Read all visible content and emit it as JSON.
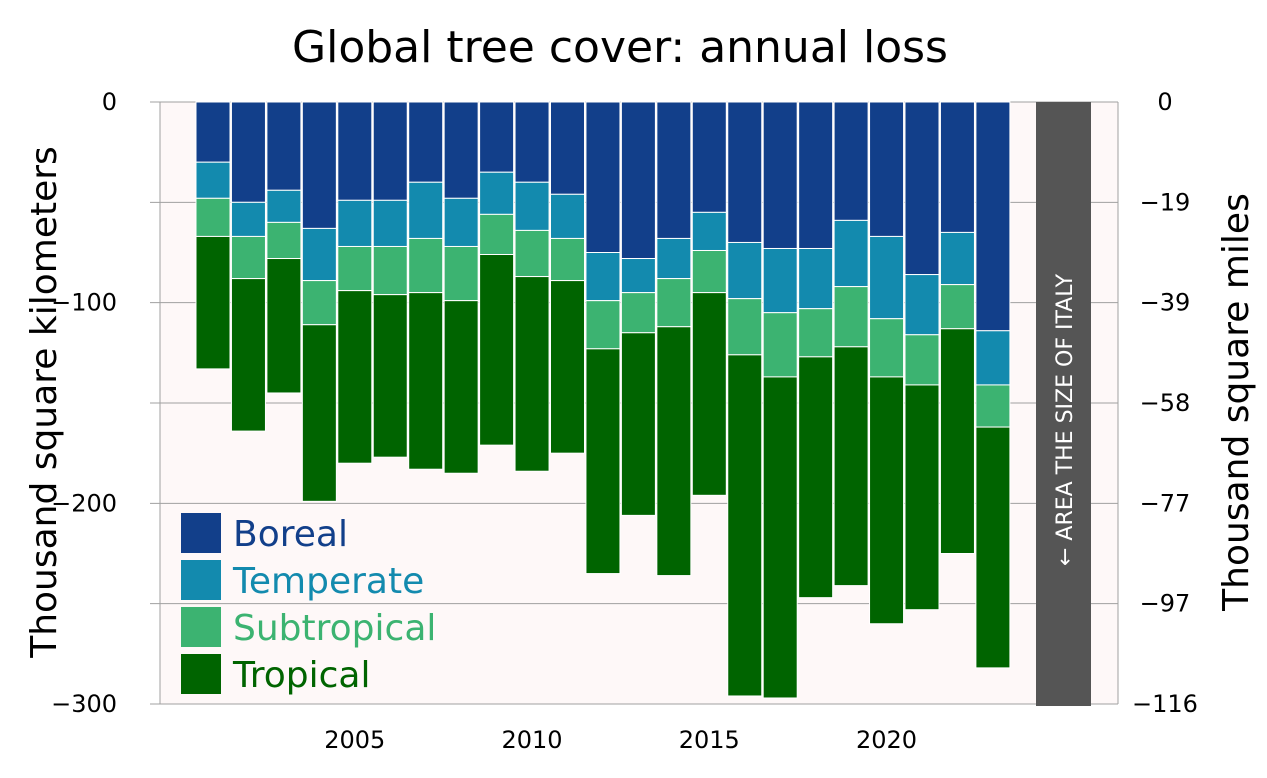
{
  "chart_data": {
    "type": "bar",
    "stacked": true,
    "title": "Global tree cover: annual loss",
    "ylabel": "Thousand square kilometers",
    "ylabel_right": "Thousand square miles",
    "ylim": [
      -300,
      0
    ],
    "yticks_left": [
      "0",
      "−100",
      "−200",
      "−300"
    ],
    "yticks_left_values": [
      0,
      -100,
      -200,
      -300
    ],
    "yticks_right": [
      "0",
      "−19",
      "−39",
      "−58",
      "−77",
      "−97",
      "−116"
    ],
    "yticks_right_values": [
      0,
      -50,
      -100,
      -150,
      -200,
      -250,
      -300
    ],
    "x": [
      2001,
      2002,
      2003,
      2004,
      2005,
      2006,
      2007,
      2008,
      2009,
      2010,
      2011,
      2012,
      2013,
      2014,
      2015,
      2016,
      2017,
      2018,
      2019,
      2020,
      2021,
      2022,
      2023
    ],
    "xticks": [
      "2005",
      "2010",
      "2015",
      "2020"
    ],
    "xticks_values": [
      2005,
      2010,
      2015,
      2020
    ],
    "series": [
      {
        "name": "Boreal",
        "color": "#123f8a",
        "values": [
          -30,
          -50,
          -44,
          -63,
          -49,
          -49,
          -40,
          -48,
          -35,
          -40,
          -46,
          -75,
          -78,
          -68,
          -55,
          -70,
          -73,
          -73,
          -59,
          -67,
          -86,
          -65,
          -114
        ]
      },
      {
        "name": "Temperate",
        "color": "#138aae",
        "values": [
          -18,
          -17,
          -16,
          -26,
          -23,
          -23,
          -28,
          -24,
          -21,
          -24,
          -22,
          -24,
          -17,
          -20,
          -19,
          -28,
          -32,
          -30,
          -33,
          -41,
          -30,
          -26,
          -27
        ]
      },
      {
        "name": "Subtropical",
        "color": "#3cb371",
        "values": [
          -19,
          -21,
          -18,
          -22,
          -22,
          -24,
          -27,
          -27,
          -20,
          -23,
          -21,
          -24,
          -20,
          -24,
          -21,
          -28,
          -32,
          -24,
          -30,
          -29,
          -25,
          -22,
          -21
        ]
      },
      {
        "name": "Tropical",
        "color": "#006400",
        "values": [
          -66,
          -76,
          -67,
          -88,
          -86,
          -81,
          -88,
          -86,
          -95,
          -97,
          -86,
          -112,
          -91,
          -124,
          -101,
          -170,
          -160,
          -120,
          -119,
          -123,
          -112,
          -112,
          -120
        ]
      }
    ],
    "annotation": "AREA THE SIZE OF ITALY",
    "annotation_arrow": "←",
    "annotation_value": -301,
    "legend": "bottom-left",
    "grid": true,
    "plot_background": "#fef8f8",
    "annotation_color": "#555555"
  }
}
